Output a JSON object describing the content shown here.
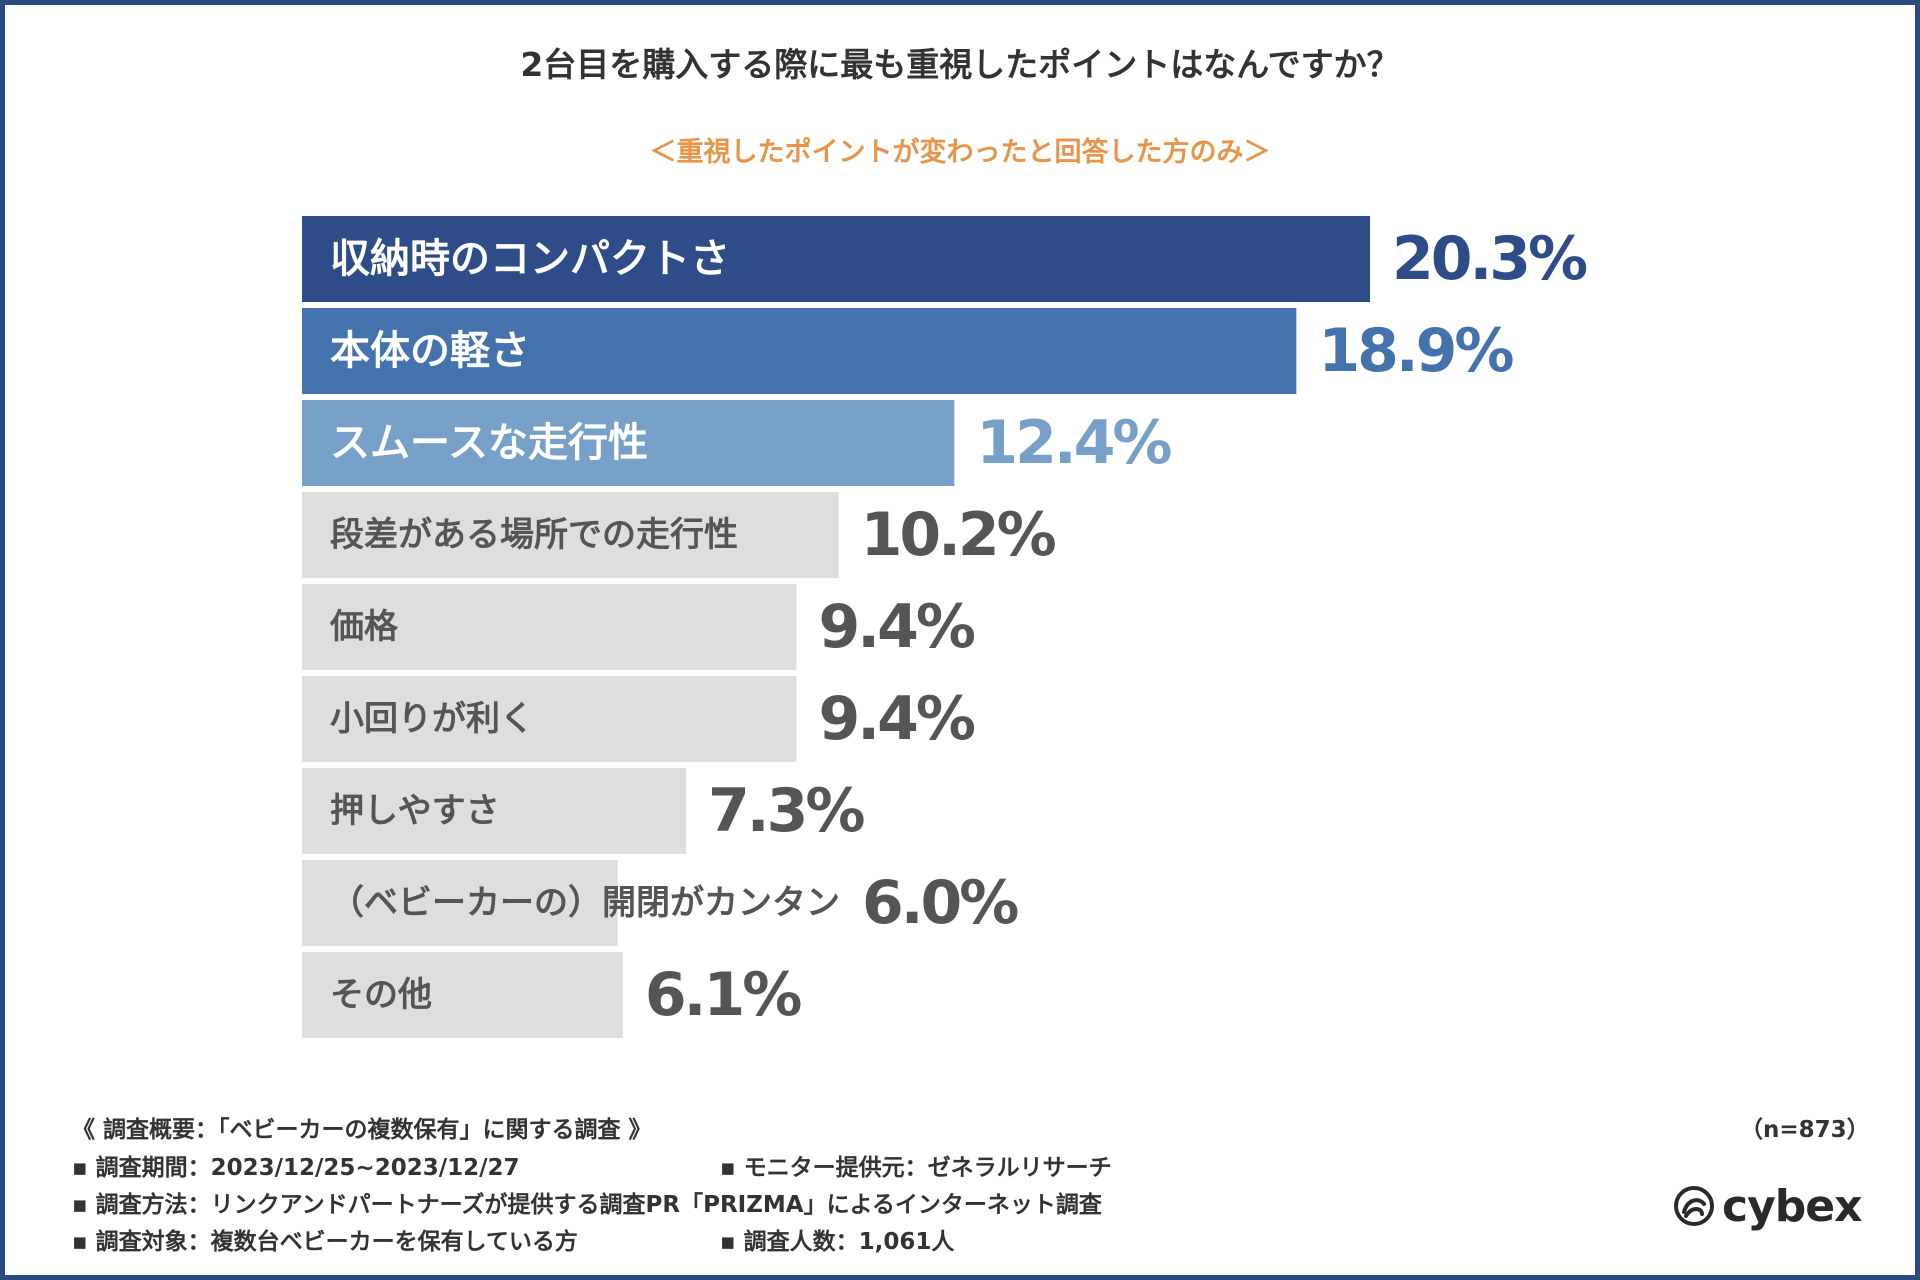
{
  "chart_data": {
    "type": "bar",
    "orientation": "horizontal",
    "title": "2台目を購入する際に最も重視したポイントはなんですか？",
    "subtitle": "＜重視したポイントが変わったと回答した方のみ＞",
    "categories": [
      "収納時のコンパクトさ",
      "本体の軽さ",
      "スムースな走行性",
      "段差がある場所での走行性",
      "価格",
      "小回りが利く",
      "押しやすさ",
      "（ベビーカーの）開閉がカンタン",
      "その他"
    ],
    "values": [
      20.3,
      18.9,
      12.4,
      10.2,
      9.4,
      9.4,
      7.3,
      6.0,
      6.1
    ],
    "value_labels": [
      "20.3%",
      "18.9%",
      "12.4%",
      "10.2%",
      "9.4%",
      "9.4%",
      "7.3%",
      "6.0%",
      "6.1%"
    ],
    "bar_colors": [
      "#2e4c87",
      "#4472ac",
      "#76a0c8",
      "#dedede",
      "#dedede",
      "#dedede",
      "#dedede",
      "#dedede",
      "#dedede"
    ],
    "label_colors": [
      "#ffffff",
      "#ffffff",
      "#ffffff",
      "#555555",
      "#555555",
      "#555555",
      "#555555",
      "#555555",
      "#555555"
    ],
    "value_colors": [
      "#2e4c87",
      "#4472ac",
      "#76a0c8",
      "#555555",
      "#555555",
      "#555555",
      "#555555",
      "#555555",
      "#555555"
    ],
    "xlim": [
      0,
      20.3
    ],
    "grid": false,
    "legend": "none"
  },
  "footer": {
    "heading": "《 調査概要：「ベビーカーの複数保有」に関する調査 》",
    "period": "▪ 調査期間：2023/12/25~2023/12/27",
    "provider": "▪ モニター提供元：ゼネラルリサーチ",
    "method": "▪ 調査方法：リンクアンドパートナーズが提供する調査PR「PRIZMA」によるインターネット調査",
    "target": "▪ 調査対象：複数台ベビーカーを保有している方",
    "count": "▪ 調査人数：1,061人",
    "n": "（n=873）"
  },
  "brand": {
    "name": "cybex",
    "logo_icon": "cybex-swirl-icon"
  }
}
